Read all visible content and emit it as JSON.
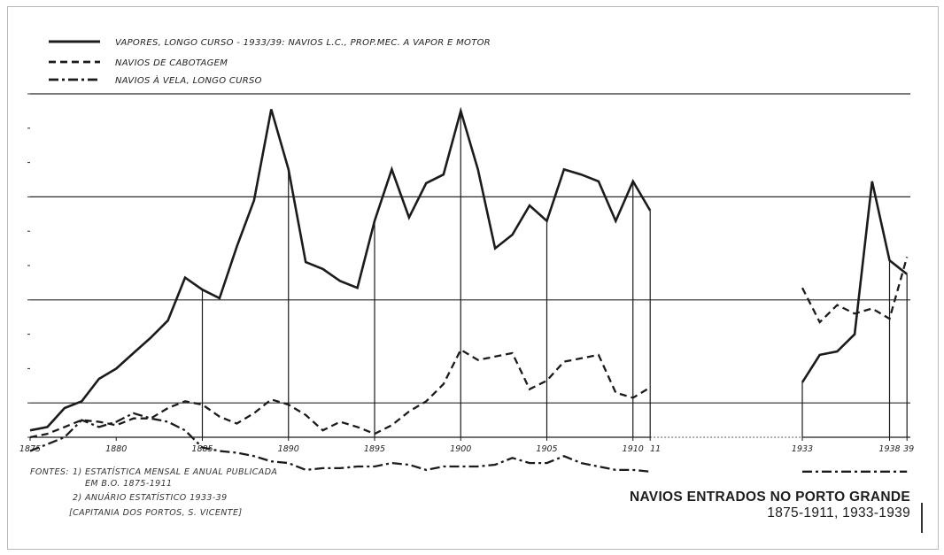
{
  "chart_data": {
    "type": "line",
    "title": "NAVIOS ENTRADOS NO PORTO GRANDE",
    "subtitle": "1875-1911, 1933-1939",
    "x_tick_labels": [
      "1875",
      "1880",
      "1885",
      "1890",
      "1895",
      "1900",
      "1905",
      "1910",
      "11",
      "1933",
      "1938",
      "39"
    ],
    "legend": [
      "VAPORES, LONGO CURSO - 1933/39: NAVIOS L.C., PROP.MEC. A VAPOR E MOTOR",
      "NAVIOS DE CABOTAGEM",
      "NAVIOS À VELA, LONGO CURSO"
    ],
    "legend_position": "top-left",
    "grid": "horizontal lines at every other y level; vertical guides at 5-year ticks",
    "y_scale": "relative index (axis numbers not legible)",
    "series": [
      {
        "name": "VAPORES, LONGO CURSO - 1933/39: NAVIOS L.C., PROP.MEC. A VAPOR E MOTOR",
        "style": "solid",
        "segments": [
          {
            "x": [
              1875,
              1876,
              1877,
              1878,
              1879,
              1880,
              1881,
              1882,
              1883,
              1884,
              1885,
              1886,
              1887,
              1888,
              1889,
              1890,
              1891,
              1892,
              1893,
              1894,
              1895,
              1896,
              1897,
              1898,
              1899,
              1900,
              1901,
              1902,
              1903,
              1904,
              1905,
              1906,
              1907,
              1908,
              1909,
              1910,
              1911
            ],
            "y": [
              0.4,
              0.6,
              1.7,
              2.1,
              3.4,
              4.0,
              4.9,
              5.8,
              6.8,
              9.3,
              8.6,
              8.1,
              11.1,
              13.8,
              19.1,
              15.6,
              10.2,
              9.8,
              9.1,
              8.7,
              12.6,
              15.6,
              12.8,
              14.8,
              15.3,
              19.0,
              15.6,
              11.0,
              11.8,
              13.5,
              12.6,
              15.6,
              15.3,
              14.9,
              12.6,
              14.9,
              13.2
            ]
          },
          {
            "x": [
              1933,
              1934,
              1935,
              1936,
              1937,
              1938,
              1939
            ],
            "y": [
              3.2,
              4.8,
              5.0,
              6.0,
              14.9,
              10.3,
              9.5
            ]
          }
        ]
      },
      {
        "name": "NAVIOS DE CABOTAGEM",
        "style": "dashed",
        "segments": [
          {
            "x": [
              1875,
              1876,
              1877,
              1878,
              1879,
              1880,
              1881,
              1882,
              1883,
              1884,
              1885,
              1886,
              1887,
              1888,
              1889,
              1890,
              1891,
              1892,
              1893,
              1894,
              1895,
              1896,
              1897,
              1898,
              1899,
              1900,
              1901,
              1902,
              1903,
              1904,
              1905,
              1906,
              1907,
              1908,
              1909,
              1910,
              1911
            ],
            "y": [
              0.0,
              0.2,
              0.6,
              1.0,
              0.9,
              0.7,
              1.1,
              1.1,
              1.7,
              2.1,
              1.9,
              1.2,
              0.8,
              1.4,
              2.2,
              1.9,
              1.3,
              0.4,
              0.9,
              0.6,
              0.2,
              0.7,
              1.5,
              2.1,
              3.1,
              5.1,
              4.5,
              4.7,
              4.9,
              2.8,
              3.3,
              4.4,
              4.6,
              4.8,
              2.6,
              2.3,
              2.9
            ]
          },
          {
            "x": [
              1933,
              1934,
              1935,
              1936,
              1937,
              1938,
              1939
            ],
            "y": [
              8.7,
              6.7,
              7.7,
              7.2,
              7.5,
              6.9,
              10.5
            ]
          }
        ]
      },
      {
        "name": "NAVIOS À VELA, LONGO CURSO",
        "style": "dash-dot",
        "segments": [
          {
            "x": [
              1875,
              1876,
              1877,
              1878,
              1879,
              1880,
              1881,
              1882,
              1883,
              1884,
              1885,
              1886,
              1887,
              1888,
              1889,
              1890,
              1891,
              1892,
              1893,
              1894,
              1895,
              1896,
              1897,
              1898,
              1899,
              1900,
              1901,
              1902,
              1903,
              1904,
              1905,
              1906,
              1907,
              1908,
              1909,
              1910,
              1911
            ],
            "y": [
              -0.8,
              -0.4,
              0.0,
              1.0,
              0.6,
              0.9,
              1.4,
              1.1,
              0.9,
              0.4,
              -0.6,
              -0.8,
              -0.9,
              -1.1,
              -1.4,
              -1.5,
              -1.9,
              -1.8,
              -1.8,
              -1.7,
              -1.7,
              -1.5,
              -1.6,
              -1.9,
              -1.7,
              -1.7,
              -1.7,
              -1.6,
              -1.2,
              -1.5,
              -1.5,
              -1.1,
              -1.5,
              -1.7,
              -1.9,
              -1.9,
              -2.0
            ]
          },
          {
            "x": [
              1933,
              1934,
              1935,
              1936,
              1937,
              1938,
              1939
            ],
            "y": [
              -2.0,
              -2.0,
              -2.0,
              -2.0,
              -2.0,
              -2.0,
              -2.0
            ]
          }
        ]
      }
    ]
  },
  "sources": {
    "label": "FONTES:",
    "line1": "1) ESTATÍSTICA MENSAL E ANUAL PUBLICADA",
    "line1b": "EM B.O. 1875-1911",
    "line2": "2) ANUÁRIO ESTATÍSTICO 1933-39",
    "line3": "[CAPITANIA DOS PORTOS, S. VICENTE]"
  },
  "colors": {
    "ink": "#1b1b1b",
    "frame": "#b9b9b9",
    "grid": "#2a2a2a"
  }
}
